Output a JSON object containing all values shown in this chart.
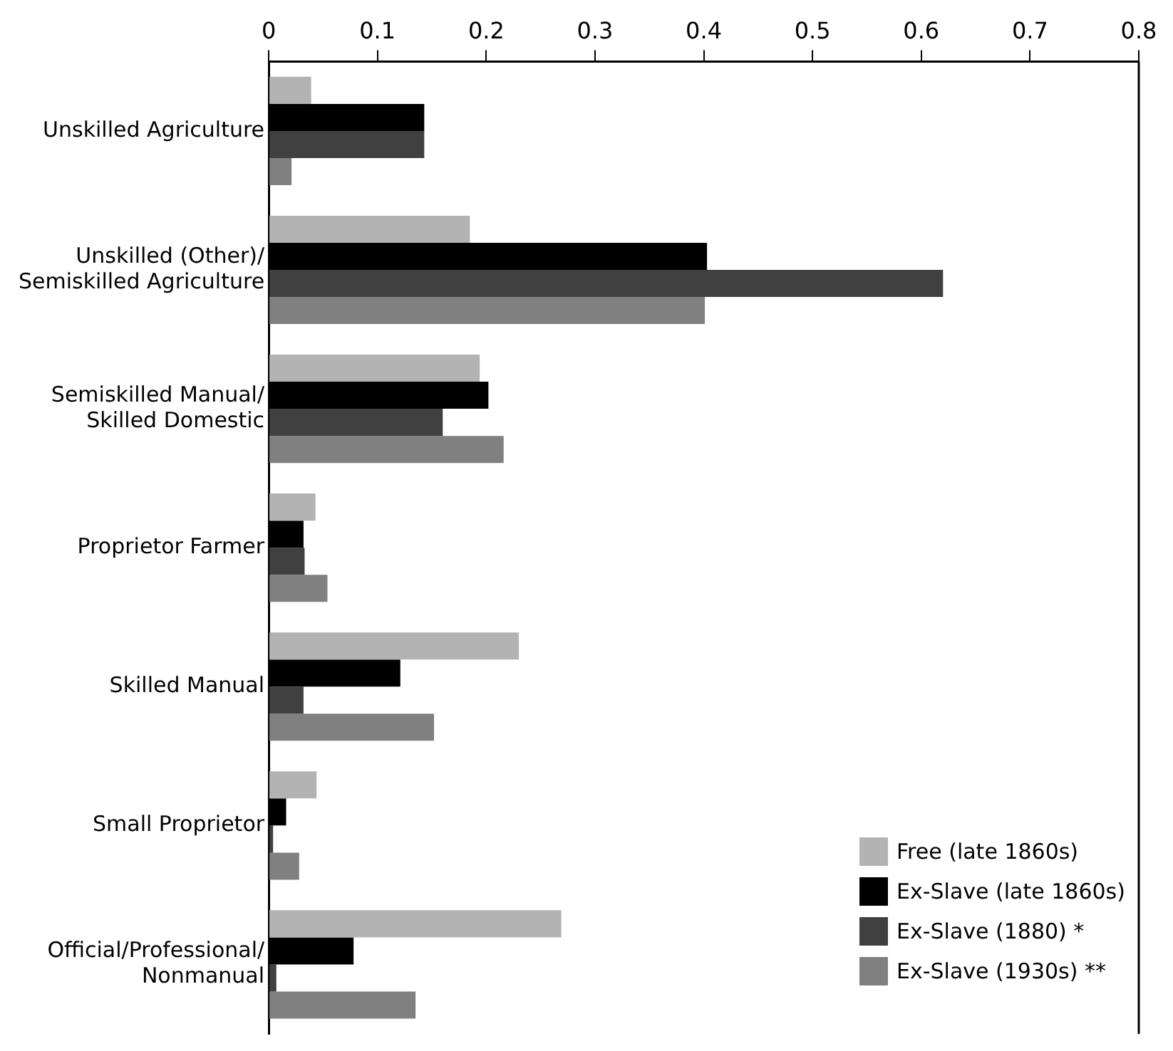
{
  "chart_data": {
    "type": "bar",
    "orientation": "horizontal",
    "categories": [
      "Unskilled Agriculture",
      "Unskilled (Other)/\nSemiskilled Agriculture",
      "Semiskilled Manual/\nSkilled Domestic",
      "Proprietor Farmer",
      "Skilled Manual",
      "Small Proprietor",
      "Official/Professional/\nNonmanual"
    ],
    "series": [
      {
        "name": "Free (late 1860s)",
        "color": "#b3b3b3",
        "values": [
          0.039,
          0.185,
          0.194,
          0.043,
          0.23,
          0.044,
          0.269
        ]
      },
      {
        "name": "Ex-Slave (late 1860s)",
        "color": "#000000",
        "values": [
          0.143,
          0.403,
          0.202,
          0.032,
          0.121,
          0.016,
          0.078
        ]
      },
      {
        "name": "Ex-Slave (1880) *",
        "color": "#404040",
        "values": [
          0.143,
          0.62,
          0.16,
          0.033,
          0.032,
          0.004,
          0.007
        ]
      },
      {
        "name": "Ex-Slave (1930s) **",
        "color": "#808080",
        "values": [
          0.021,
          0.401,
          0.216,
          0.054,
          0.152,
          0.028,
          0.135
        ]
      }
    ],
    "xlim": [
      0,
      0.8
    ],
    "xticks": [
      0,
      0.1,
      0.2,
      0.3,
      0.4,
      0.5,
      0.6,
      0.7,
      0.8
    ],
    "grid": false,
    "legend": "bottom right"
  }
}
